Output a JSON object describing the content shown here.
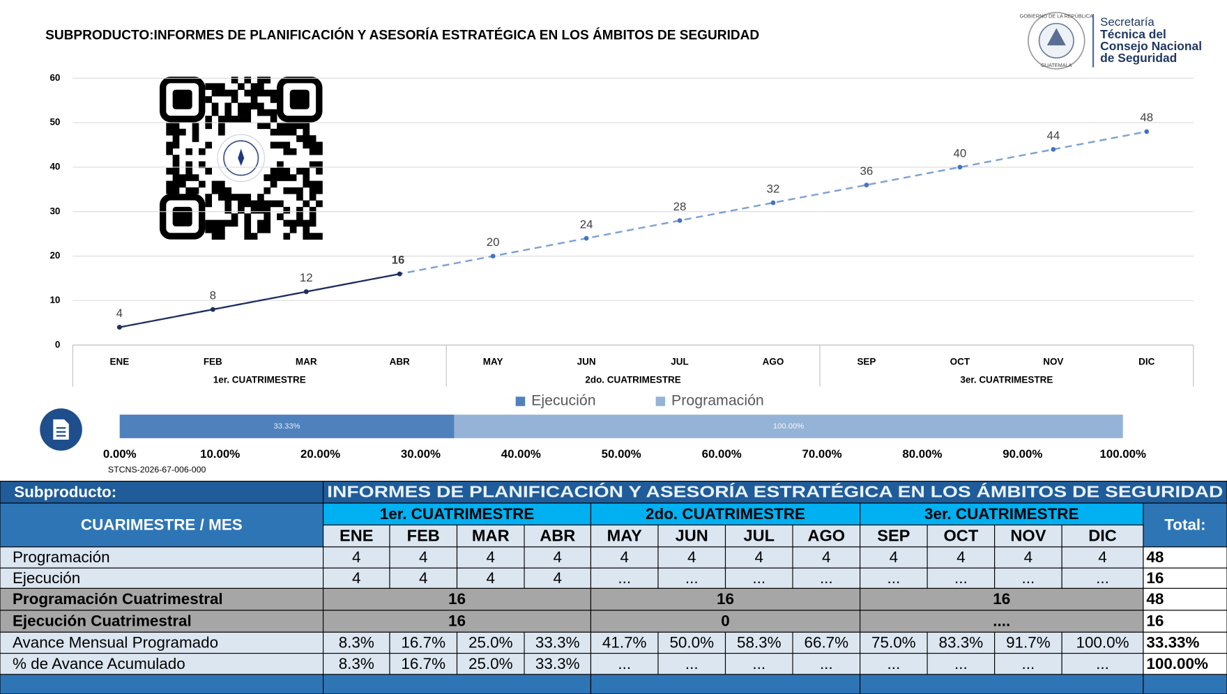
{
  "chart_data": [
    {
      "type": "line",
      "title": "SUBPRODUCTO:INFORMES DE PLANIFICACIÓN Y ASESORÍA ESTRATÉGICA EN LOS ÁMBITOS DE SEGURIDAD",
      "categories": [
        "ENE",
        "FEB",
        "MAR",
        "ABR",
        "MAY",
        "JUN",
        "JUL",
        "AGO",
        "SEP",
        "OCT",
        "NOV",
        "DIC"
      ],
      "groups": [
        "1er. CUATRIMESTRE",
        "2do. CUATRIMESTRE",
        "3er. CUATRIMESTRE"
      ],
      "series": [
        {
          "name": "Ejecución",
          "color": "#1f2d5c",
          "values": [
            4,
            8,
            12,
            16,
            null,
            null,
            null,
            null,
            null,
            null,
            null,
            null
          ]
        },
        {
          "name": "Programación",
          "color": "#7ea2d6",
          "values": [
            4,
            8,
            12,
            16,
            20,
            24,
            28,
            32,
            36,
            40,
            44,
            48
          ]
        }
      ],
      "ylim": [
        0,
        60
      ],
      "yticks": [
        0,
        10,
        20,
        30,
        40,
        50,
        60
      ],
      "grid": true
    },
    {
      "type": "bar",
      "orientation": "horizontal",
      "series": [
        {
          "name": "Ejecución",
          "color": "#4f81bd",
          "values": [
            33.33
          ],
          "value_labels": [
            "33.33%"
          ]
        },
        {
          "name": "Programación",
          "color": "#95b3d7",
          "values": [
            100
          ],
          "value_labels": [
            "100.00%"
          ]
        }
      ],
      "xlim": [
        0,
        100
      ],
      "xticks": [
        {
          "value": 0,
          "label": "0.00%"
        },
        {
          "value": 10,
          "label": "10.00%"
        },
        {
          "value": 20,
          "label": "20.00%"
        },
        {
          "value": 30,
          "label": "30.00%"
        },
        {
          "value": 40,
          "label": "40.00%"
        },
        {
          "value": 50,
          "label": "50.00%"
        },
        {
          "value": 60,
          "label": "60.00%"
        },
        {
          "value": 70,
          "label": "70.00%"
        },
        {
          "value": 80,
          "label": "80.00%"
        },
        {
          "value": 90,
          "label": "90.00%"
        },
        {
          "value": 100,
          "label": "100.00%"
        }
      ],
      "legend": "top"
    }
  ],
  "document_code": "STCNS-2026-67-006-000",
  "logo": {
    "lines": [
      "Secretaría",
      "Técnica del",
      "Consejo Nacional",
      "de Seguridad"
    ],
    "emblem": [
      "GOBIERNO DE LA REPÚBLICA",
      "GUATEMALA"
    ]
  },
  "table": {
    "subproduct_label": "Subproducto:",
    "subproduct": "INFORMES DE PLANIFICACIÓN Y ASESORÍA ESTRATÉGICA EN LOS ÁMBITOS DE SEGURIDAD",
    "header_label": "CUARIMESTRE / MES",
    "total_label": "Total:",
    "rows": [
      {
        "label": "Programación",
        "cells": [
          "4",
          "4",
          "4",
          "4",
          "4",
          "4",
          "4",
          "4",
          "4",
          "4",
          "4",
          "4"
        ],
        "total": "48"
      },
      {
        "label": "Ejecución",
        "cells": [
          "4",
          "4",
          "4",
          "4",
          "...",
          "...",
          "...",
          "...",
          "...",
          "...",
          "...",
          "..."
        ],
        "total": "16"
      },
      {
        "label": "Programación Cuatrimestral",
        "cells": [
          "16",
          "16",
          "16"
        ],
        "total": "48"
      },
      {
        "label": "Ejecución Cuatrimestral",
        "cells": [
          "16",
          "0",
          "...."
        ],
        "total": "16"
      },
      {
        "label": "Avance Mensual Programado",
        "cells": [
          "8.3%",
          "16.7%",
          "25.0%",
          "33.3%",
          "41.7%",
          "50.0%",
          "58.3%",
          "66.7%",
          "75.0%",
          "83.3%",
          "91.7%",
          "100.0%"
        ],
        "total": "33.33%"
      },
      {
        "label": "% de Avance Acumulado",
        "cells": [
          "8.3%",
          "16.7%",
          "25.0%",
          "33.3%",
          "...",
          "...",
          "...",
          "...",
          "...",
          "...",
          "...",
          "..."
        ],
        "total": "100.00%"
      }
    ]
  }
}
